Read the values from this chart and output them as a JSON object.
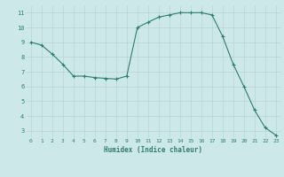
{
  "x": [
    0,
    1,
    2,
    3,
    4,
    5,
    6,
    7,
    8,
    9,
    10,
    11,
    12,
    13,
    14,
    15,
    16,
    17,
    18,
    19,
    20,
    21,
    22,
    23
  ],
  "y": [
    9.0,
    8.8,
    8.2,
    7.5,
    6.7,
    6.7,
    6.6,
    6.55,
    6.5,
    6.7,
    10.0,
    10.35,
    10.7,
    10.85,
    11.0,
    11.0,
    11.0,
    10.85,
    9.4,
    7.5,
    6.0,
    4.4,
    3.2,
    2.7
  ],
  "line_color": "#2e7d6e",
  "marker": "+",
  "marker_color": "#2e7d6e",
  "bg_color": "#cce8e8",
  "grid_color": "#b8d4d4",
  "xlabel": "Humidex (Indice chaleur)",
  "xlabel_color": "#2e7d6e",
  "tick_color": "#2e7d6e",
  "xlim": [
    -0.5,
    23.5
  ],
  "ylim": [
    2.5,
    11.5
  ],
  "xticks": [
    0,
    1,
    2,
    3,
    4,
    5,
    6,
    7,
    8,
    9,
    10,
    11,
    12,
    13,
    14,
    15,
    16,
    17,
    18,
    19,
    20,
    21,
    22,
    23
  ],
  "yticks": [
    3,
    4,
    5,
    6,
    7,
    8,
    9,
    10,
    11
  ],
  "figsize": [
    3.2,
    2.0
  ],
  "dpi": 100
}
